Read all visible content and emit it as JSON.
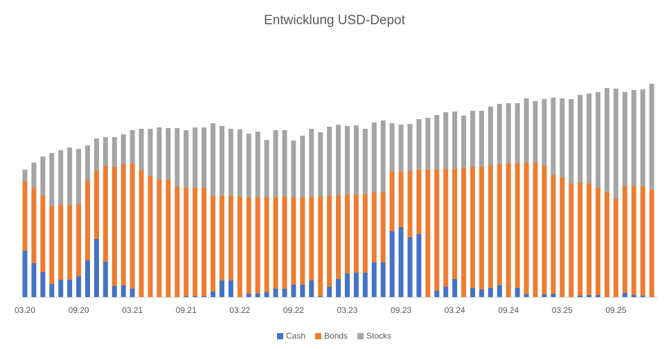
{
  "chart_data": {
    "type": "stacked_bar",
    "title": "Entwicklung USD-Depot",
    "categories": [
      "03.20",
      null,
      null,
      null,
      null,
      null,
      "09.20",
      null,
      null,
      null,
      null,
      null,
      "03.21",
      null,
      null,
      null,
      null,
      null,
      "09.21",
      null,
      null,
      null,
      null,
      null,
      "03.22",
      null,
      null,
      null,
      null,
      null,
      "09.22",
      null,
      null,
      null,
      null,
      null,
      "03.23",
      null,
      null,
      null,
      null,
      null,
      "09.23",
      null,
      null,
      null,
      null,
      null,
      "03.24",
      null,
      null,
      null,
      null,
      null,
      "09.24",
      null,
      null,
      null,
      null,
      null,
      "03.25",
      null,
      null,
      null,
      null,
      null,
      "09.25",
      null,
      null,
      null,
      null
    ],
    "series": [
      {
        "name": "Cash",
        "color": "#4472c4",
        "values": [
          67,
          49,
          36,
          19,
          25,
          25,
          30,
          53,
          84,
          51,
          16,
          17,
          12,
          0,
          0,
          0,
          0,
          0,
          1,
          1,
          1,
          8,
          24,
          24,
          0,
          5,
          5,
          7,
          12,
          12,
          18,
          18,
          24,
          1,
          15,
          26,
          34,
          35,
          35,
          50,
          50,
          95,
          101,
          86,
          91,
          0,
          9,
          15,
          26,
          0,
          13,
          11,
          13,
          17,
          0,
          13,
          4,
          0,
          4,
          5,
          0,
          0,
          2,
          3,
          3,
          0,
          0,
          6,
          3,
          2,
          0
        ]
      },
      {
        "name": "Bonds",
        "color": "#ed7d31",
        "values": [
          100,
          109,
          111,
          112,
          108,
          108,
          104,
          115,
          98,
          138,
          172,
          175,
          181,
          183,
          175,
          170,
          169,
          159,
          157,
          157,
          157,
          138,
          122,
          122,
          145,
          139,
          139,
          137,
          132,
          133,
          126,
          126,
          121,
          144,
          131,
          121,
          114,
          113,
          114,
          101,
          101,
          86,
          80,
          96,
          93,
          184,
          175,
          170,
          159,
          186,
          175,
          177,
          177,
          175,
          193,
          180,
          190,
          194,
          185,
          171,
          173,
          164,
          164,
          161,
          155,
          151,
          142,
          154,
          157,
          158,
          155
        ]
      },
      {
        "name": "Stocks",
        "color": "#a5a5a5",
        "values": [
          17,
          36,
          56,
          77,
          79,
          83,
          80,
          51,
          47,
          42,
          43,
          43,
          48,
          60,
          68,
          75,
          75,
          85,
          83,
          87,
          87,
          105,
          101,
          97,
          97,
          92,
          95,
          83,
          97,
          96,
          82,
          89,
          98,
          93,
          100,
          102,
          99,
          100,
          94,
          101,
          104,
          70,
          68,
          68,
          73,
          75,
          79,
          82,
          83,
          76,
          81,
          81,
          85,
          87,
          87,
          87,
          93,
          89,
          97,
          112,
          114,
          122,
          126,
          130,
          138,
          151,
          159,
          136,
          139,
          140,
          153
        ]
      }
    ],
    "ylim": [
      0,
      329
    ]
  }
}
